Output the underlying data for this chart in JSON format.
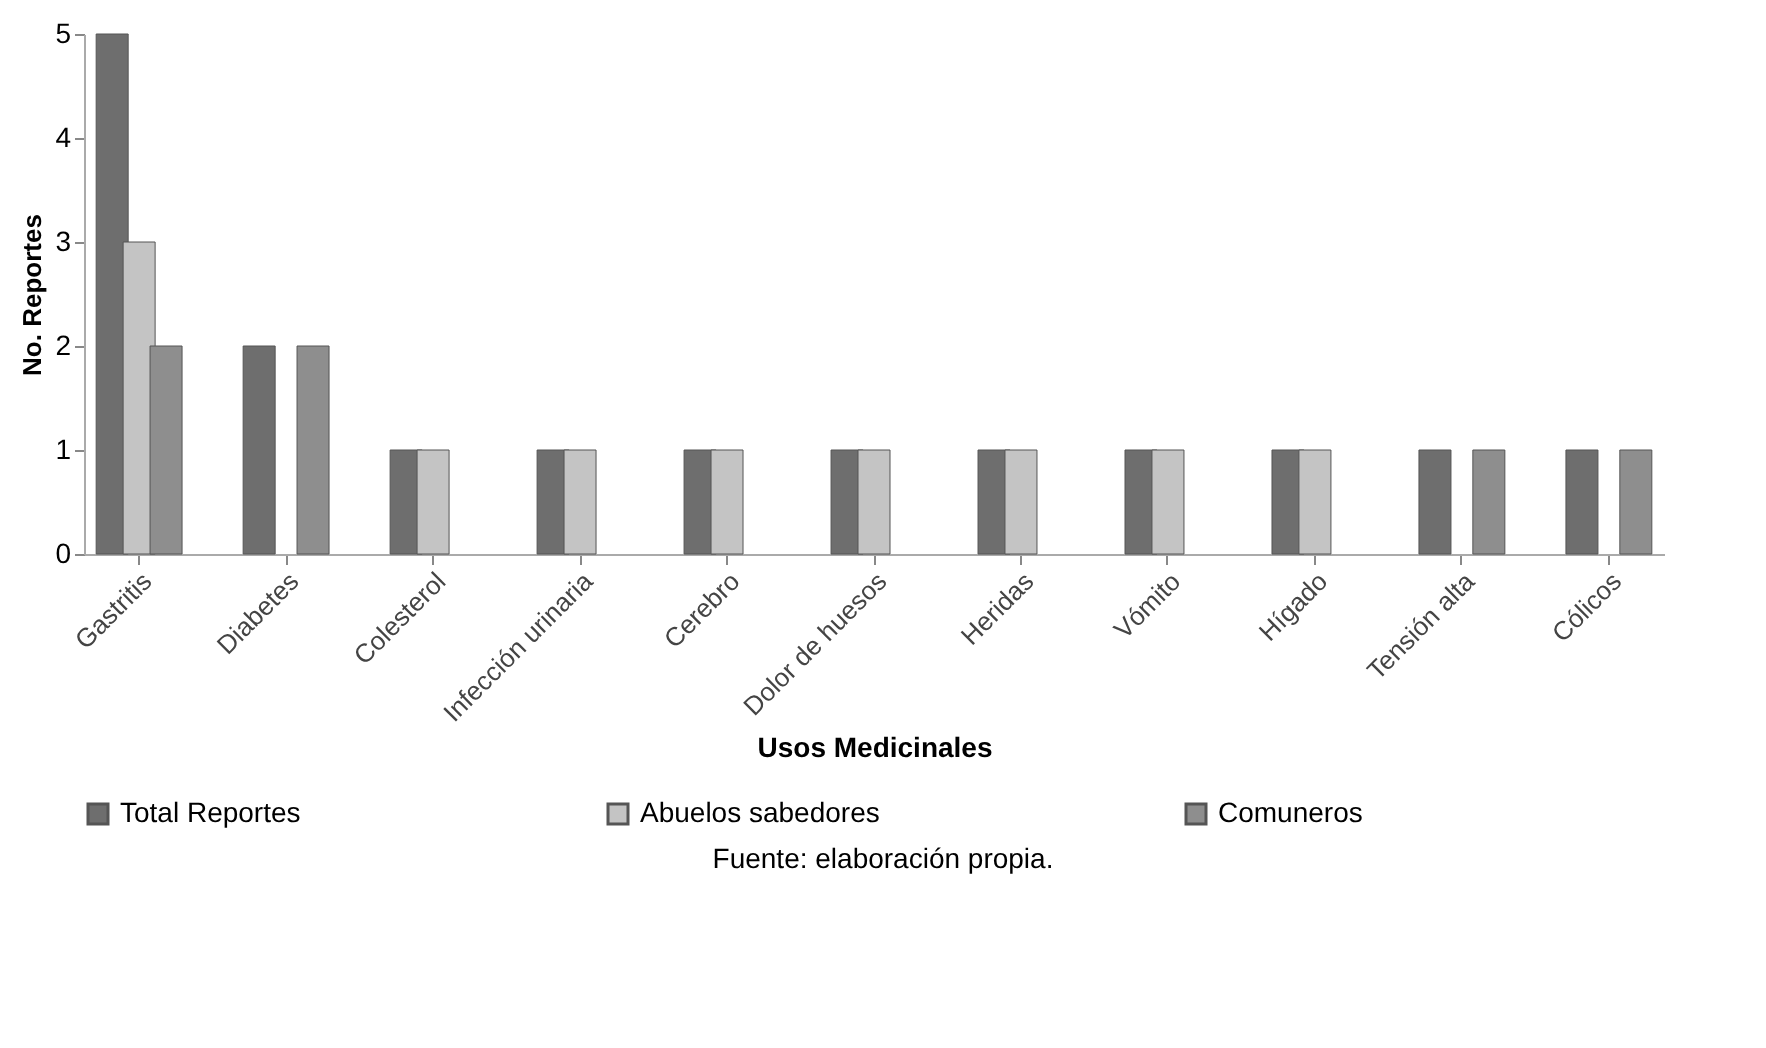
{
  "chart_data": {
    "type": "bar",
    "xlabel": "Usos Medicinales",
    "ylabel": "No. Reportes",
    "categories": [
      "Gastritis",
      "Diabetes",
      "Colesterol",
      "Infección urinaria",
      "Cerebro",
      "Dolor de huesos",
      "Heridas",
      "Vómito",
      "Hígado",
      "Tensión alta",
      "Cólicos"
    ],
    "series": [
      {
        "name": "Total Reportes",
        "color": "#6e6e6e",
        "values": [
          5,
          2,
          1,
          1,
          1,
          1,
          1,
          1,
          1,
          1,
          1
        ]
      },
      {
        "name": "Abuelos sabedores",
        "color": "#c4c4c4",
        "values": [
          3,
          null,
          1,
          1,
          1,
          1,
          1,
          1,
          1,
          null,
          null
        ]
      },
      {
        "name": "Comuneros",
        "color": "#8e8e8e",
        "values": [
          2,
          2,
          null,
          null,
          null,
          null,
          null,
          null,
          null,
          1,
          1
        ]
      }
    ],
    "ylim": [
      0,
      5
    ],
    "yticks": [
      0,
      1,
      2,
      3,
      4,
      5
    ],
    "grid": false,
    "legend": "bottom",
    "annotations": [
      "Fuente: elaboración propia."
    ]
  }
}
